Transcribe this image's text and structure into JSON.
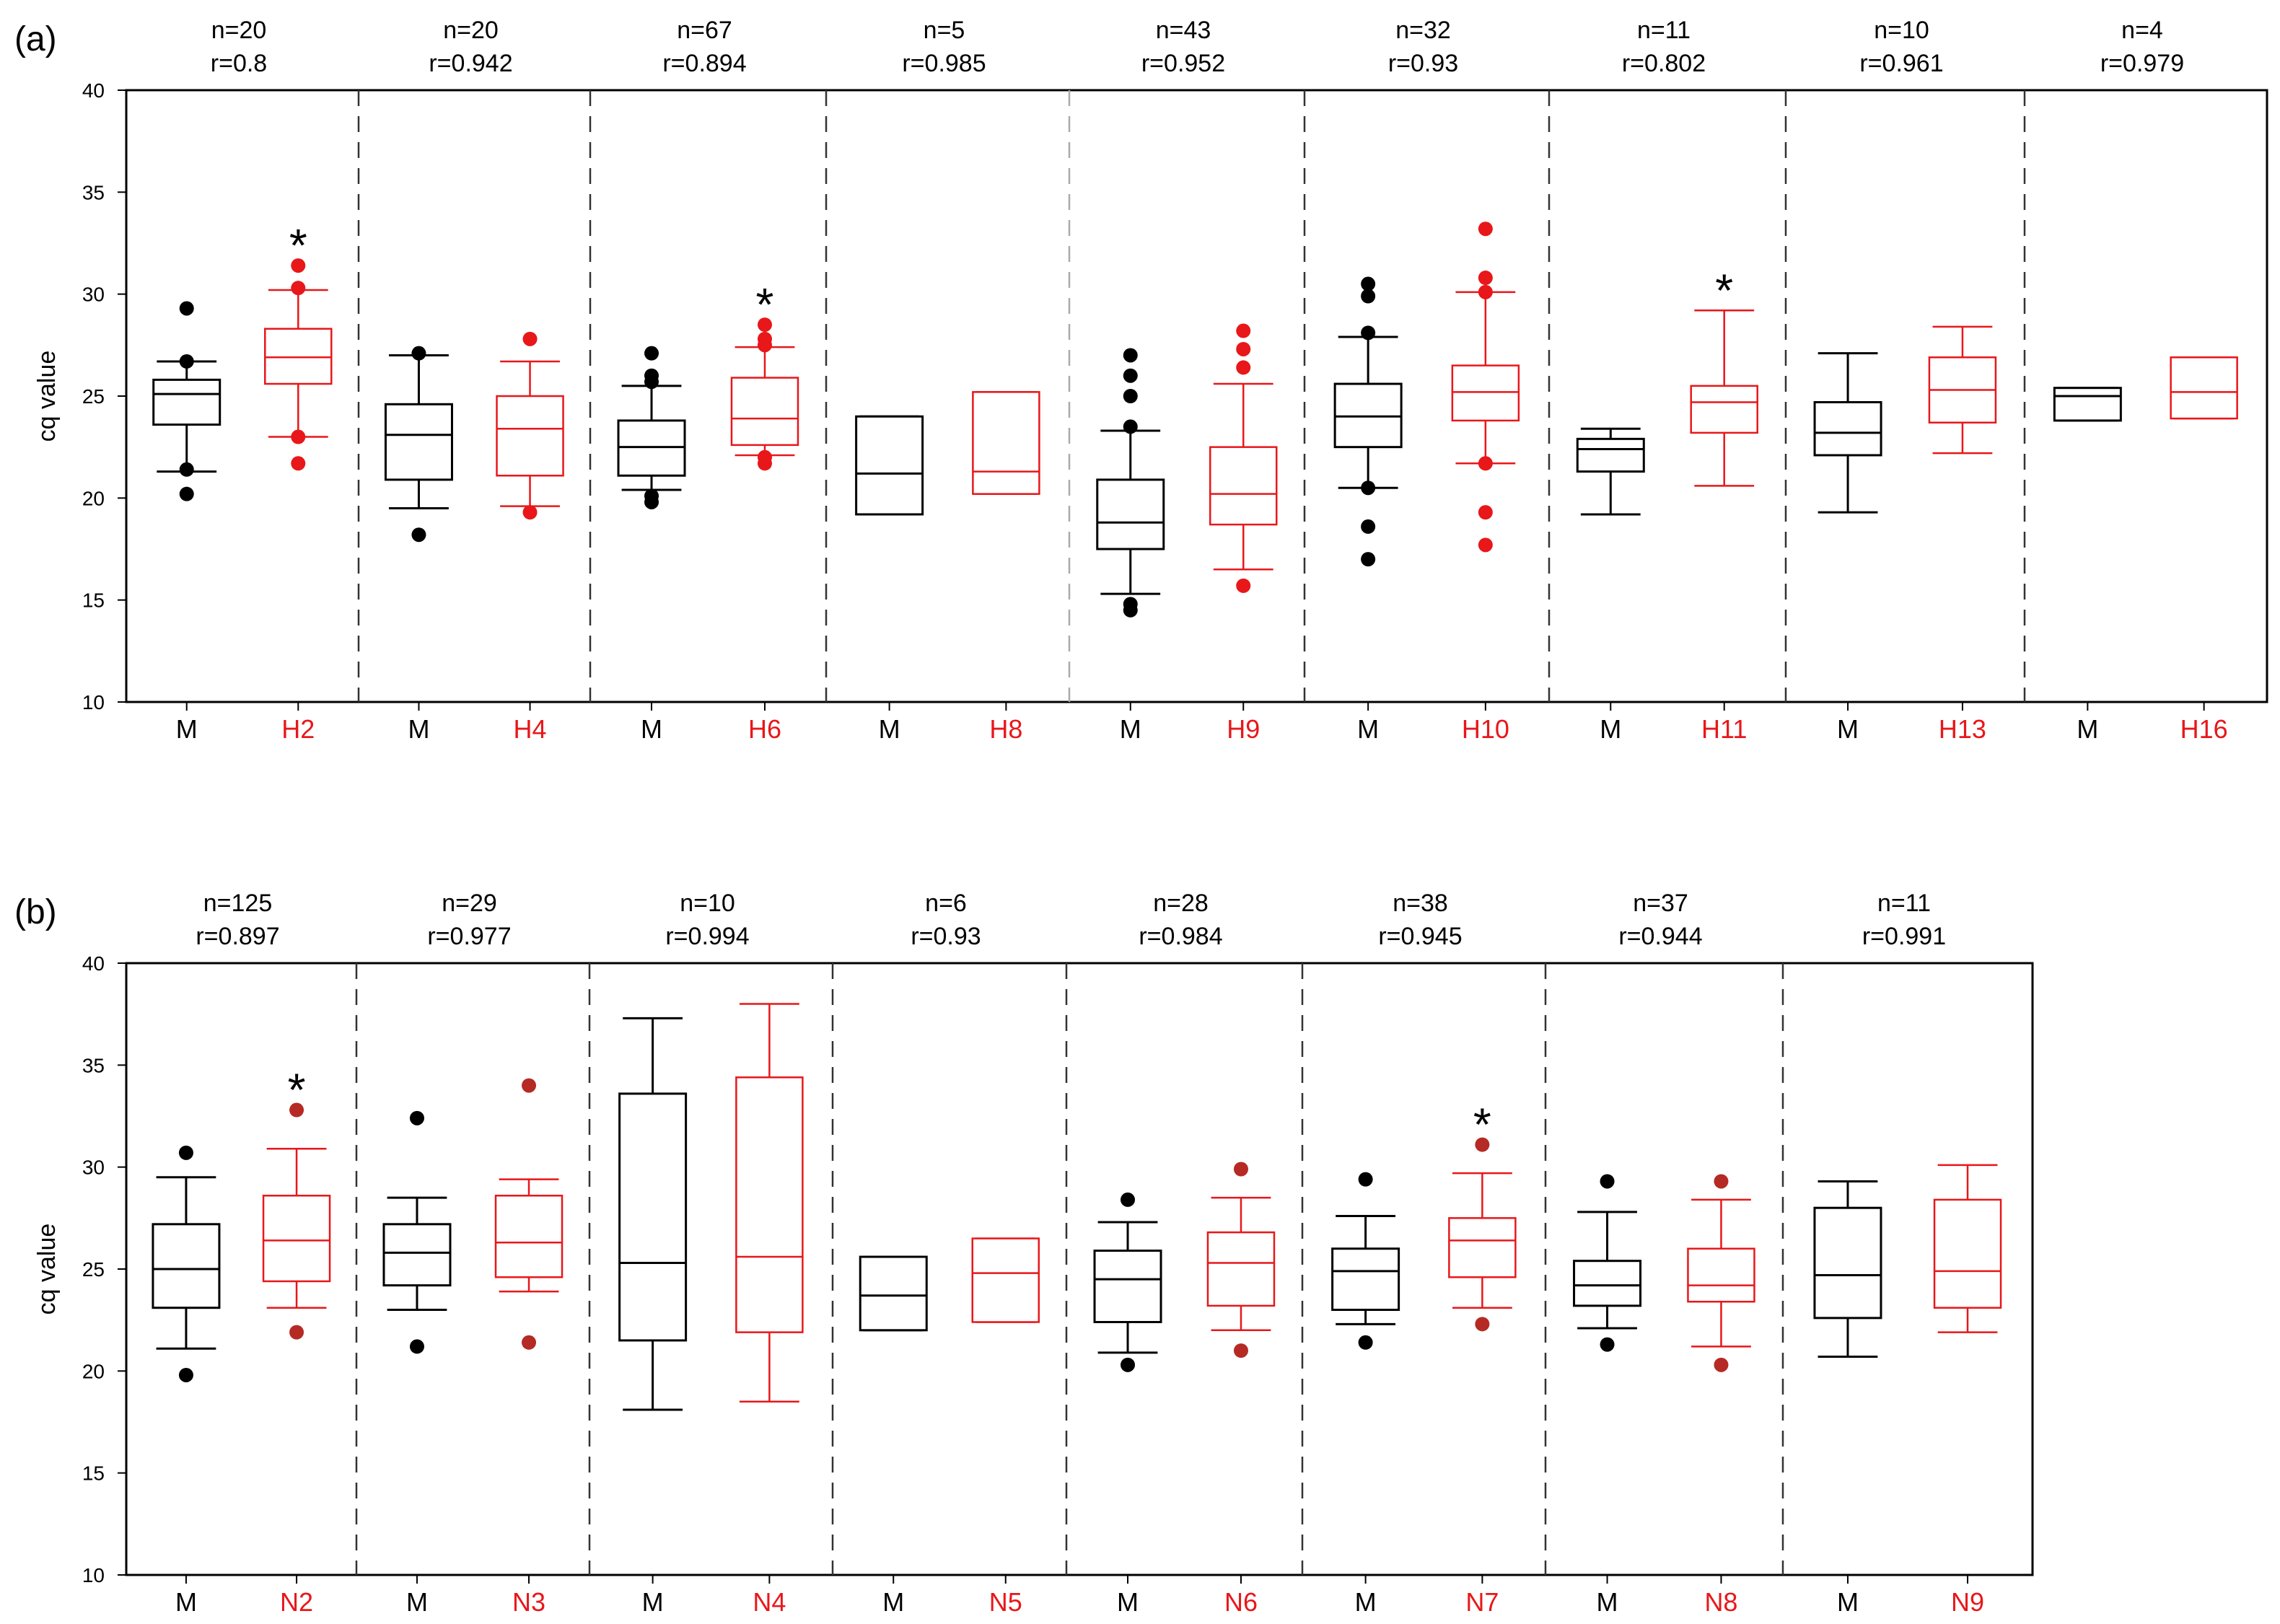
{
  "colors": {
    "male": "#000000",
    "comparison": "#e8171a",
    "comparison_dark_outlier": "#b52a24",
    "divider": "#333333",
    "divider_light": "#aaaaaa",
    "axis": "#000000"
  },
  "chart_data": [
    {
      "type": "box",
      "panel_label": "(a)",
      "ylabel": "cq value",
      "ylim": [
        10,
        40
      ],
      "yticks": [
        10,
        15,
        20,
        25,
        30,
        35,
        40
      ],
      "groups": [
        {
          "n_label": "n=20",
          "r_label": "r=0.8",
          "boxes": [
            {
              "label": "M",
              "series": "male",
              "whislo": 21.3,
              "q1": 23.6,
              "med": 25.1,
              "q3": 25.8,
              "whishi": 26.7,
              "fliers": [
                20.2,
                21.4,
                26.7,
                29.3
              ],
              "star": false
            },
            {
              "label": "H2",
              "series": "comparison",
              "whislo": 23.0,
              "q1": 25.6,
              "med": 26.9,
              "q3": 28.3,
              "whishi": 30.2,
              "fliers": [
                21.7,
                23.0,
                30.3,
                31.4
              ],
              "star": true
            }
          ]
        },
        {
          "n_label": "n=20",
          "r_label": "r=0.942",
          "boxes": [
            {
              "label": "M",
              "series": "male",
              "whislo": 19.5,
              "q1": 20.9,
              "med": 23.1,
              "q3": 24.6,
              "whishi": 27.0,
              "fliers": [
                18.2,
                27.1
              ],
              "star": false
            },
            {
              "label": "H4",
              "series": "comparison",
              "whislo": 19.6,
              "q1": 21.1,
              "med": 23.4,
              "q3": 25.0,
              "whishi": 26.7,
              "fliers": [
                19.3,
                27.8
              ],
              "star": false
            }
          ]
        },
        {
          "n_label": "n=67",
          "r_label": "r=0.894",
          "boxes": [
            {
              "label": "M",
              "series": "male",
              "whislo": 20.4,
              "q1": 21.1,
              "med": 22.5,
              "q3": 23.8,
              "whishi": 25.5,
              "fliers": [
                19.8,
                20.1,
                25.7,
                26.0,
                27.1
              ],
              "star": false
            },
            {
              "label": "H6",
              "series": "comparison",
              "whislo": 22.1,
              "q1": 22.6,
              "med": 23.9,
              "q3": 25.9,
              "whishi": 27.4,
              "fliers": [
                21.7,
                22.0,
                27.5,
                27.8,
                28.5
              ],
              "star": true
            }
          ]
        },
        {
          "n_label": "n=5",
          "r_label": "r=0.985",
          "boxes": [
            {
              "label": "M",
              "series": "male",
              "whislo": 19.2,
              "q1": 19.2,
              "med": 21.2,
              "q3": 24.0,
              "whishi": 24.0,
              "fliers": [],
              "star": false
            },
            {
              "label": "H8",
              "series": "comparison",
              "whislo": 20.2,
              "q1": 20.2,
              "med": 21.3,
              "q3": 25.2,
              "whishi": 25.2,
              "fliers": [],
              "star": false
            }
          ]
        },
        {
          "n_label": "n=43",
          "r_label": "r=0.952",
          "boxes": [
            {
              "label": "M",
              "series": "male",
              "whislo": 15.3,
              "q1": 17.5,
              "med": 18.8,
              "q3": 20.9,
              "whishi": 23.3,
              "fliers": [
                14.5,
                14.8,
                23.5,
                25.0,
                26.0,
                27.0
              ],
              "star": false
            },
            {
              "label": "H9",
              "series": "comparison",
              "whislo": 16.5,
              "q1": 18.7,
              "med": 20.2,
              "q3": 22.5,
              "whishi": 25.6,
              "fliers": [
                15.7,
                26.4,
                27.3,
                28.2
              ],
              "star": false
            }
          ]
        },
        {
          "n_label": "n=32",
          "r_label": "r=0.93",
          "boxes": [
            {
              "label": "M",
              "series": "male",
              "whislo": 20.5,
              "q1": 22.5,
              "med": 24.0,
              "q3": 25.6,
              "whishi": 27.9,
              "fliers": [
                17.0,
                18.6,
                20.5,
                28.1,
                29.9,
                30.5
              ],
              "star": false
            },
            {
              "label": "H10",
              "series": "comparison",
              "whislo": 21.7,
              "q1": 23.8,
              "med": 25.2,
              "q3": 26.5,
              "whishi": 30.1,
              "fliers": [
                17.7,
                19.3,
                21.7,
                30.1,
                30.8,
                33.2
              ],
              "star": false
            }
          ]
        },
        {
          "n_label": "n=11",
          "r_label": "r=0.802",
          "boxes": [
            {
              "label": "M",
              "series": "male",
              "whislo": 19.2,
              "q1": 21.3,
              "med": 22.4,
              "q3": 22.9,
              "whishi": 23.4,
              "fliers": [],
              "star": false
            },
            {
              "label": "H11",
              "series": "comparison",
              "whislo": 20.6,
              "q1": 23.2,
              "med": 24.7,
              "q3": 25.5,
              "whishi": 29.2,
              "fliers": [],
              "star": true
            }
          ]
        },
        {
          "n_label": "n=10",
          "r_label": "r=0.961",
          "boxes": [
            {
              "label": "M",
              "series": "male",
              "whislo": 19.3,
              "q1": 22.1,
              "med": 23.2,
              "q3": 24.7,
              "whishi": 27.1,
              "fliers": [],
              "star": false
            },
            {
              "label": "H13",
              "series": "comparison",
              "whislo": 22.2,
              "q1": 23.7,
              "med": 25.3,
              "q3": 26.9,
              "whishi": 28.4,
              "fliers": [],
              "star": false
            }
          ]
        },
        {
          "n_label": "n=4",
          "r_label": "r=0.979",
          "boxes": [
            {
              "label": "M",
              "series": "male",
              "whislo": 23.8,
              "q1": 23.8,
              "med": 25.0,
              "q3": 25.4,
              "whishi": 25.4,
              "fliers": [],
              "star": false
            },
            {
              "label": "H16",
              "series": "comparison",
              "whislo": 23.9,
              "q1": 23.9,
              "med": 25.2,
              "q3": 26.9,
              "whishi": 26.9,
              "fliers": [],
              "star": false
            }
          ]
        }
      ]
    },
    {
      "type": "box",
      "panel_label": "(b)",
      "ylabel": "cq value",
      "ylim": [
        10,
        40
      ],
      "yticks": [
        10,
        15,
        20,
        25,
        30,
        35,
        40
      ],
      "groups": [
        {
          "n_label": "n=125",
          "r_label": "r=0.897",
          "boxes": [
            {
              "label": "M",
              "series": "male",
              "whislo": 21.1,
              "q1": 23.1,
              "med": 25.0,
              "q3": 27.2,
              "whishi": 29.5,
              "fliers": [
                19.8,
                30.7
              ],
              "star": false
            },
            {
              "label": "N2",
              "series": "comparison",
              "whislo": 23.1,
              "q1": 24.4,
              "med": 26.4,
              "q3": 28.6,
              "whishi": 30.9,
              "fliers": [
                21.9,
                32.8
              ],
              "star": true
            }
          ]
        },
        {
          "n_label": "n=29",
          "r_label": "r=0.977",
          "boxes": [
            {
              "label": "M",
              "series": "male",
              "whislo": 23.0,
              "q1": 24.2,
              "med": 25.8,
              "q3": 27.2,
              "whishi": 28.5,
              "fliers": [
                21.2,
                32.4
              ],
              "star": false
            },
            {
              "label": "N3",
              "series": "comparison",
              "whislo": 23.9,
              "q1": 24.6,
              "med": 26.3,
              "q3": 28.6,
              "whishi": 29.4,
              "fliers": [
                21.4,
                34.0
              ],
              "star": false
            }
          ]
        },
        {
          "n_label": "n=10",
          "r_label": "r=0.994",
          "boxes": [
            {
              "label": "M",
              "series": "male",
              "whislo": 18.1,
              "q1": 21.5,
              "med": 25.3,
              "q3": 33.6,
              "whishi": 37.3,
              "fliers": [],
              "star": false
            },
            {
              "label": "N4",
              "series": "comparison",
              "whislo": 18.5,
              "q1": 21.9,
              "med": 25.6,
              "q3": 34.4,
              "whishi": 38.0,
              "fliers": [],
              "star": false
            }
          ]
        },
        {
          "n_label": "n=6",
          "r_label": "r=0.93",
          "boxes": [
            {
              "label": "M",
              "series": "male",
              "whislo": 22.0,
              "q1": 22.0,
              "med": 23.7,
              "q3": 25.6,
              "whishi": 25.6,
              "fliers": [],
              "star": false
            },
            {
              "label": "N5",
              "series": "comparison",
              "whislo": 22.4,
              "q1": 22.4,
              "med": 24.8,
              "q3": 26.5,
              "whishi": 26.5,
              "fliers": [],
              "star": false
            }
          ]
        },
        {
          "n_label": "n=28",
          "r_label": "r=0.984",
          "boxes": [
            {
              "label": "M",
              "series": "male",
              "whislo": 20.9,
              "q1": 22.4,
              "med": 24.5,
              "q3": 25.9,
              "whishi": 27.3,
              "fliers": [
                20.3,
                28.4
              ],
              "star": false
            },
            {
              "label": "N6",
              "series": "comparison",
              "whislo": 22.0,
              "q1": 23.2,
              "med": 25.3,
              "q3": 26.8,
              "whishi": 28.5,
              "fliers": [
                21.0,
                29.9
              ],
              "star": false
            }
          ]
        },
        {
          "n_label": "n=38",
          "r_label": "r=0.945",
          "boxes": [
            {
              "label": "M",
              "series": "male",
              "whislo": 22.3,
              "q1": 23.0,
              "med": 24.9,
              "q3": 26.0,
              "whishi": 27.6,
              "fliers": [
                21.4,
                29.4
              ],
              "star": false
            },
            {
              "label": "N7",
              "series": "comparison",
              "whislo": 23.1,
              "q1": 24.6,
              "med": 26.4,
              "q3": 27.5,
              "whishi": 29.7,
              "fliers": [
                22.3,
                31.1
              ],
              "star": true
            }
          ]
        },
        {
          "n_label": "n=37",
          "r_label": "r=0.944",
          "boxes": [
            {
              "label": "M",
              "series": "male",
              "whislo": 22.1,
              "q1": 23.2,
              "med": 24.2,
              "q3": 25.4,
              "whishi": 27.8,
              "fliers": [
                21.3,
                29.3
              ],
              "star": false
            },
            {
              "label": "N8",
              "series": "comparison",
              "whislo": 21.2,
              "q1": 23.4,
              "med": 24.2,
              "q3": 26.0,
              "whishi": 28.4,
              "fliers": [
                20.3,
                29.3
              ],
              "star": false
            }
          ]
        },
        {
          "n_label": "n=11",
          "r_label": "r=0.991",
          "boxes": [
            {
              "label": "M",
              "series": "male",
              "whislo": 20.7,
              "q1": 22.6,
              "med": 24.7,
              "q3": 28.0,
              "whishi": 29.3,
              "fliers": [],
              "star": false
            },
            {
              "label": "N9",
              "series": "comparison",
              "whislo": 21.9,
              "q1": 23.1,
              "med": 24.9,
              "q3": 28.4,
              "whishi": 30.1,
              "fliers": [],
              "star": false
            }
          ]
        }
      ]
    }
  ]
}
